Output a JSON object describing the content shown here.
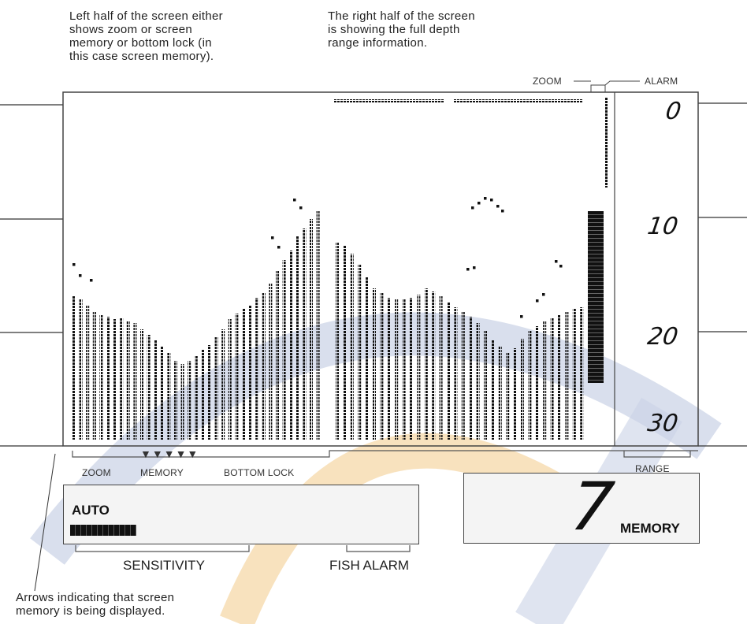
{
  "annotations": {
    "left_half": "Left half of the screen either\nshows zoom or screen\nmemory or bottom lock (in\nthis case screen memory).",
    "right_half": "The right half of the screen\nis showing the full depth\nrange information.",
    "arrows": "Arrows indicating that screen\nmemory is being displayed."
  },
  "top_labels": {
    "zoom": "ZOOM",
    "alarm": "ALARM"
  },
  "depth_scale": [
    "0",
    "10",
    "20",
    "30"
  ],
  "mode_labels": {
    "zoom": "ZOOM",
    "memory": "MEMORY",
    "bottom_lock": "BOTTOM LOCK"
  },
  "mode_arrows": "▼▼▼▼▼",
  "range_label": "RANGE",
  "sensitivity": {
    "mode": "AUTO",
    "label": "SENSITIVITY"
  },
  "fish_alarm_label": "FISH ALARM",
  "memory_display": {
    "digit": "7",
    "label": "MEMORY"
  },
  "colors": {
    "ink": "#111111",
    "frame": "#444444",
    "watermark_blue": "#c9d2e6",
    "watermark_orange": "#f6d8a8"
  }
}
